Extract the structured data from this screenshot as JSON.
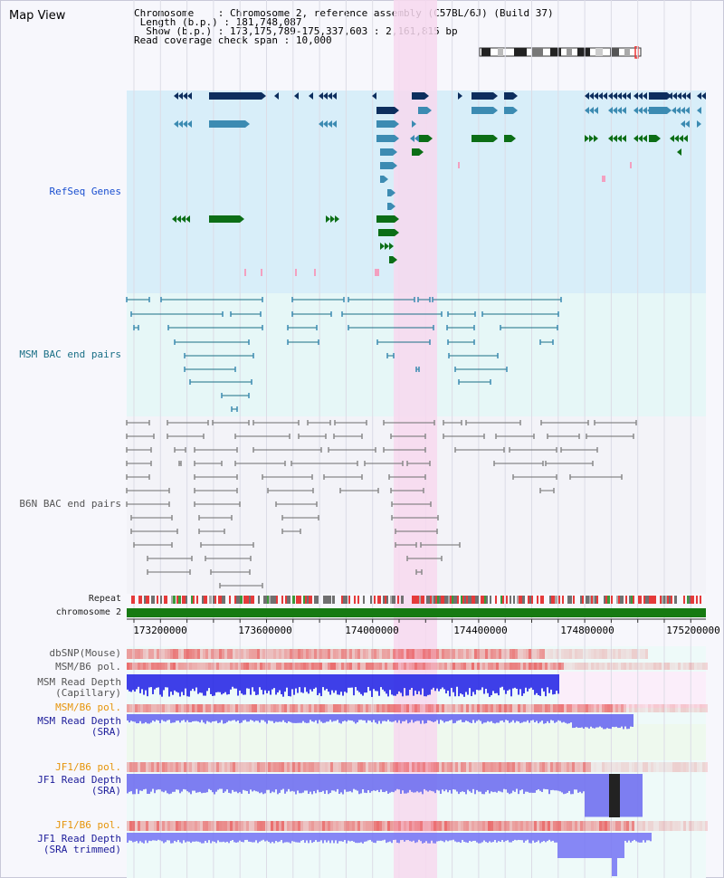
{
  "title": "Map View",
  "info": {
    "chromosome_key": "Chromosome",
    "chromosome_val": "Chromosome 2, reference assembly (C57BL/6J) (Build 37)",
    "length_key": "Length (b.p.)",
    "length_val": "181,748,087",
    "show_key": "Show (b.p.)",
    "show_val": "173,175,789-175,337,603 : 2,161,815 bp",
    "coverage_key": "Read coverage check span",
    "coverage_val": "10,000"
  },
  "tracks": {
    "refseq": "RefSeq Genes",
    "msm_bac": "MSM BAC end pairs",
    "b6n_bac": "B6N BAC end pairs",
    "repeat": "Repeat",
    "chromosome": "chromosome 2",
    "dbsnp": "dbSNP(Mouse)",
    "msm_b6_pol_1": "MSM/B6 pol.",
    "msm_read_depth_cap_1": "MSM Read Depth",
    "msm_read_depth_cap_2": "(Capillary)",
    "msm_b6_pol_2": "MSM/B6 pol.",
    "msm_read_depth_sra_1": "MSM Read Depth",
    "msm_read_depth_sra_2": "(SRA)",
    "jf1_b6_pol_1": "JF1/B6 pol.",
    "jf1_read_depth_sra_1": "JF1 Read Depth",
    "jf1_read_depth_sra_2": "(SRA)",
    "jf1_b6_pol_2": "JF1/B6 pol.",
    "jf1_read_depth_trim_1": "JF1 Read Depth",
    "jf1_read_depth_trim_2": "(SRA trimmed)"
  },
  "ruler": {
    "ticks": [
      "173200000",
      "173600000",
      "174000000",
      "174400000",
      "174800000",
      "175200000"
    ]
  },
  "colors": {
    "refseq_bg": "#d8eef9",
    "msm_bg": "#e6f7f7",
    "b6n_bg": "#f3f3f8",
    "highlight": "#f7d8ee",
    "gene_dark": "#0d2e5e",
    "gene_mid": "#3c8bb2",
    "gene_green": "#0c6e16",
    "chrom_green": "#167a12",
    "snp_red": "#e84a4a",
    "depth_blue": "#2a2ae6"
  }
}
